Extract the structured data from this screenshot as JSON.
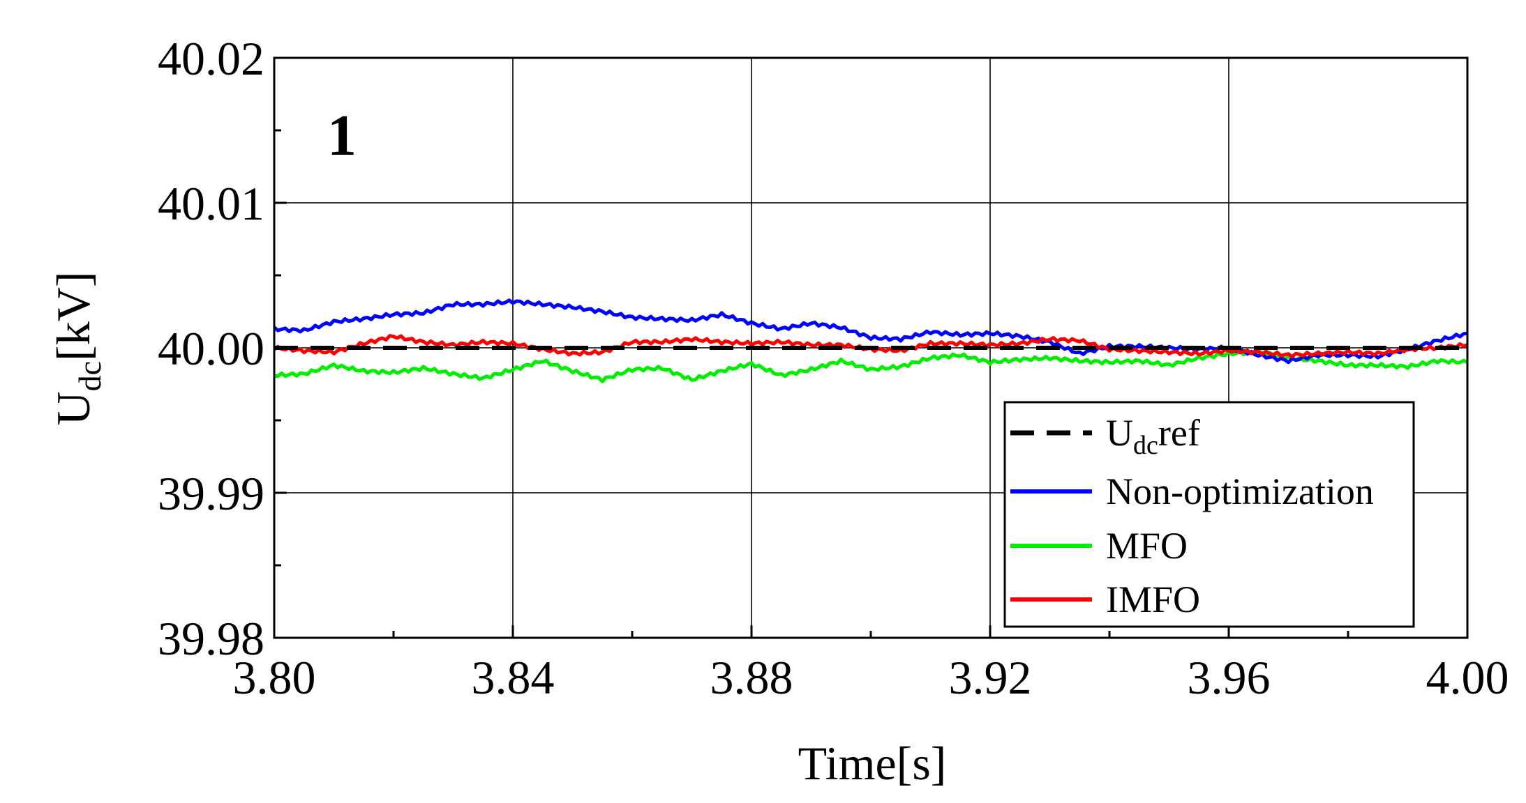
{
  "chart_data": {
    "type": "line",
    "annotation": {
      "text": "1",
      "color": "#ff0000"
    },
    "xlabel": "Time[s]",
    "ylabel": {
      "main": "U",
      "sub": "dc",
      "rest": "[kV]"
    },
    "xlim": [
      3.8,
      4.0
    ],
    "ylim": [
      39.98,
      40.02
    ],
    "xticks": [
      3.8,
      3.84,
      3.88,
      3.92,
      3.96,
      4.0
    ],
    "xtick_labels": [
      "3.80",
      "3.84",
      "3.88",
      "3.92",
      "3.96",
      "4.00"
    ],
    "yticks": [
      39.98,
      39.99,
      40.0,
      40.01,
      40.02
    ],
    "ytick_labels": [
      "39.98",
      "39.99",
      "40.00",
      "40.01",
      "40.02"
    ],
    "grid": true,
    "legend_position": "lower-right",
    "series": [
      {
        "name": "U_dc ref",
        "legend": {
          "main": "U",
          "sub": "dc",
          "rest": "ref"
        },
        "color": "#000000",
        "style": "dashed",
        "x": [
          3.8,
          4.0
        ],
        "y": [
          40.0,
          40.0
        ]
      },
      {
        "name": "Non-optimization",
        "legend": {
          "main": "Non-optimization",
          "sub": "",
          "rest": ""
        },
        "color": "#0000ff",
        "style": "solid",
        "x": [
          3.8,
          3.805,
          3.81,
          3.815,
          3.82,
          3.825,
          3.83,
          3.835,
          3.84,
          3.845,
          3.85,
          3.855,
          3.86,
          3.865,
          3.87,
          3.875,
          3.88,
          3.885,
          3.89,
          3.895,
          3.9,
          3.905,
          3.91,
          3.915,
          3.92,
          3.925,
          3.93,
          3.935,
          3.94,
          3.945,
          3.95,
          3.955,
          3.96,
          3.965,
          3.97,
          3.975,
          3.98,
          3.985,
          3.99,
          3.995,
          4.0
        ],
        "y": [
          40.0013,
          40.0012,
          40.0018,
          40.002,
          40.0023,
          40.0024,
          40.003,
          40.003,
          40.0032,
          40.003,
          40.0028,
          40.0025,
          40.0021,
          40.002,
          40.0019,
          40.0023,
          40.0017,
          40.0013,
          40.0017,
          40.0014,
          40.0007,
          40.0006,
          40.0011,
          40.0009,
          40.001,
          40.0008,
          40.0004,
          39.9996,
          40.0001,
          40.0001,
          40.0,
          39.9999,
          40.0,
          39.9995,
          39.9991,
          39.9995,
          39.9995,
          39.9994,
          39.9999,
          40.0005,
          40.001
        ]
      },
      {
        "name": "MFO",
        "legend": {
          "main": "MFO",
          "sub": "",
          "rest": ""
        },
        "color": "#00ee00",
        "style": "solid",
        "x": [
          3.8,
          3.805,
          3.81,
          3.815,
          3.82,
          3.825,
          3.83,
          3.835,
          3.84,
          3.845,
          3.85,
          3.855,
          3.86,
          3.865,
          3.87,
          3.875,
          3.88,
          3.885,
          3.89,
          3.895,
          3.9,
          3.905,
          3.91,
          3.915,
          3.92,
          3.925,
          3.93,
          3.935,
          3.94,
          3.945,
          3.95,
          3.955,
          3.96,
          3.965,
          3.97,
          3.975,
          3.98,
          3.985,
          3.99,
          3.995,
          4.0
        ],
        "y": [
          39.9981,
          39.9982,
          39.9988,
          39.9984,
          39.9983,
          39.9986,
          39.9982,
          39.9979,
          39.9985,
          39.9991,
          39.9984,
          39.9978,
          39.9985,
          39.9986,
          39.9978,
          39.9984,
          39.9989,
          39.9981,
          39.9985,
          39.9991,
          39.9985,
          39.9987,
          39.9993,
          39.9995,
          39.999,
          39.9992,
          39.9993,
          39.9991,
          39.999,
          39.9991,
          39.9988,
          39.9993,
          39.9996,
          39.9997,
          39.9993,
          39.9991,
          39.9988,
          39.9988,
          39.9987,
          39.9991,
          39.999
        ]
      },
      {
        "name": "IMFO",
        "legend": {
          "main": "IMFO",
          "sub": "",
          "rest": ""
        },
        "color": "#ff0000",
        "style": "solid",
        "x": [
          3.8,
          3.805,
          3.81,
          3.815,
          3.82,
          3.825,
          3.83,
          3.835,
          3.84,
          3.845,
          3.85,
          3.855,
          3.86,
          3.865,
          3.87,
          3.875,
          3.88,
          3.885,
          3.89,
          3.895,
          3.9,
          3.905,
          3.91,
          3.915,
          3.92,
          3.925,
          3.93,
          3.935,
          3.94,
          3.945,
          3.95,
          3.955,
          3.96,
          3.965,
          3.97,
          3.975,
          3.98,
          3.985,
          3.99,
          3.995,
          4.0
        ],
        "y": [
          40.0,
          39.9998,
          39.9997,
          40.0003,
          40.0008,
          40.0004,
          40.0002,
          40.0004,
          40.0003,
          39.9999,
          39.9996,
          39.9997,
          40.0004,
          40.0004,
          40.0006,
          40.0004,
          40.0003,
          40.0004,
          40.0002,
          40.0002,
          39.9999,
          39.9998,
          40.0003,
          40.0003,
          40.0002,
          40.0003,
          40.0006,
          40.0005,
          39.9999,
          39.9998,
          39.9997,
          39.9996,
          39.9998,
          39.9997,
          39.9995,
          39.9996,
          39.9997,
          39.9996,
          39.9999,
          40.0,
          40.0002
        ]
      }
    ]
  }
}
